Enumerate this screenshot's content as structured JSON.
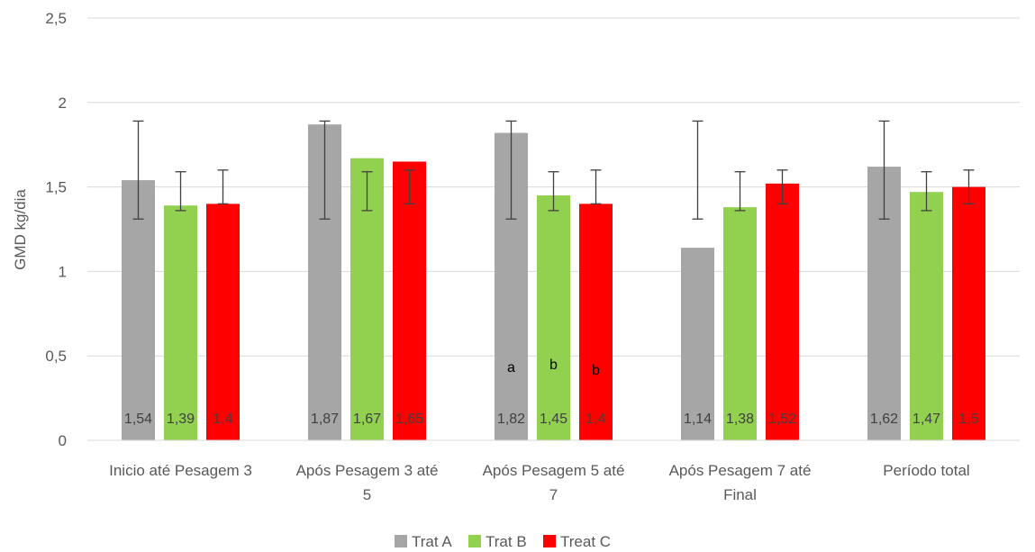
{
  "chart_data": {
    "type": "bar",
    "title": "",
    "xlabel": "",
    "ylabel": "GMD kg/dia",
    "ylim": [
      0,
      2.5
    ],
    "yticks": [
      "0",
      "0,5",
      "1",
      "1,5",
      "2",
      "2,5"
    ],
    "ytick_values": [
      0,
      0.5,
      1,
      1.5,
      2,
      2.5
    ],
    "grid": true,
    "legend_position": "bottom",
    "categories": [
      [
        "Inicio até Pesagem 3"
      ],
      [
        "Após Pesagem 3 até",
        "5"
      ],
      [
        "Após Pesagem 5 até",
        "7"
      ],
      [
        "Após Pesagem 7 até",
        "Final"
      ],
      [
        "Período total"
      ]
    ],
    "series": [
      {
        "name": "Trat A",
        "color": "#a6a6a6",
        "values": [
          1.54,
          1.87,
          1.82,
          1.14,
          1.62
        ],
        "labels": [
          "1,54",
          "1,87",
          "1,82",
          "1,14",
          "1,62"
        ],
        "error_low": [
          1.31,
          1.31,
          1.31,
          1.31,
          1.31
        ],
        "error_high": [
          1.89,
          1.89,
          1.89,
          1.89,
          1.89
        ],
        "annotations": [
          "",
          "",
          "a",
          "",
          ""
        ]
      },
      {
        "name": "Trat B",
        "color": "#92d050",
        "values": [
          1.39,
          1.67,
          1.45,
          1.38,
          1.47
        ],
        "labels": [
          "1,39",
          "1,67",
          "1,45",
          "1,38",
          "1,47"
        ],
        "error_low": [
          1.36,
          1.36,
          1.36,
          1.36,
          1.36
        ],
        "error_high": [
          1.59,
          1.59,
          1.59,
          1.59,
          1.59
        ],
        "annotations": [
          "",
          "",
          "b",
          "",
          ""
        ]
      },
      {
        "name": "Treat C",
        "color": "#ff0000",
        "values": [
          1.4,
          1.65,
          1.4,
          1.52,
          1.5
        ],
        "labels": [
          "1,4",
          "1,65",
          "1,4",
          "1,52",
          "1,5"
        ],
        "error_low": [
          1.4,
          1.4,
          1.4,
          1.4,
          1.4
        ],
        "error_high": [
          1.6,
          1.6,
          1.6,
          1.6,
          1.6
        ],
        "annotations": [
          "",
          "",
          "b",
          "",
          ""
        ]
      }
    ]
  }
}
